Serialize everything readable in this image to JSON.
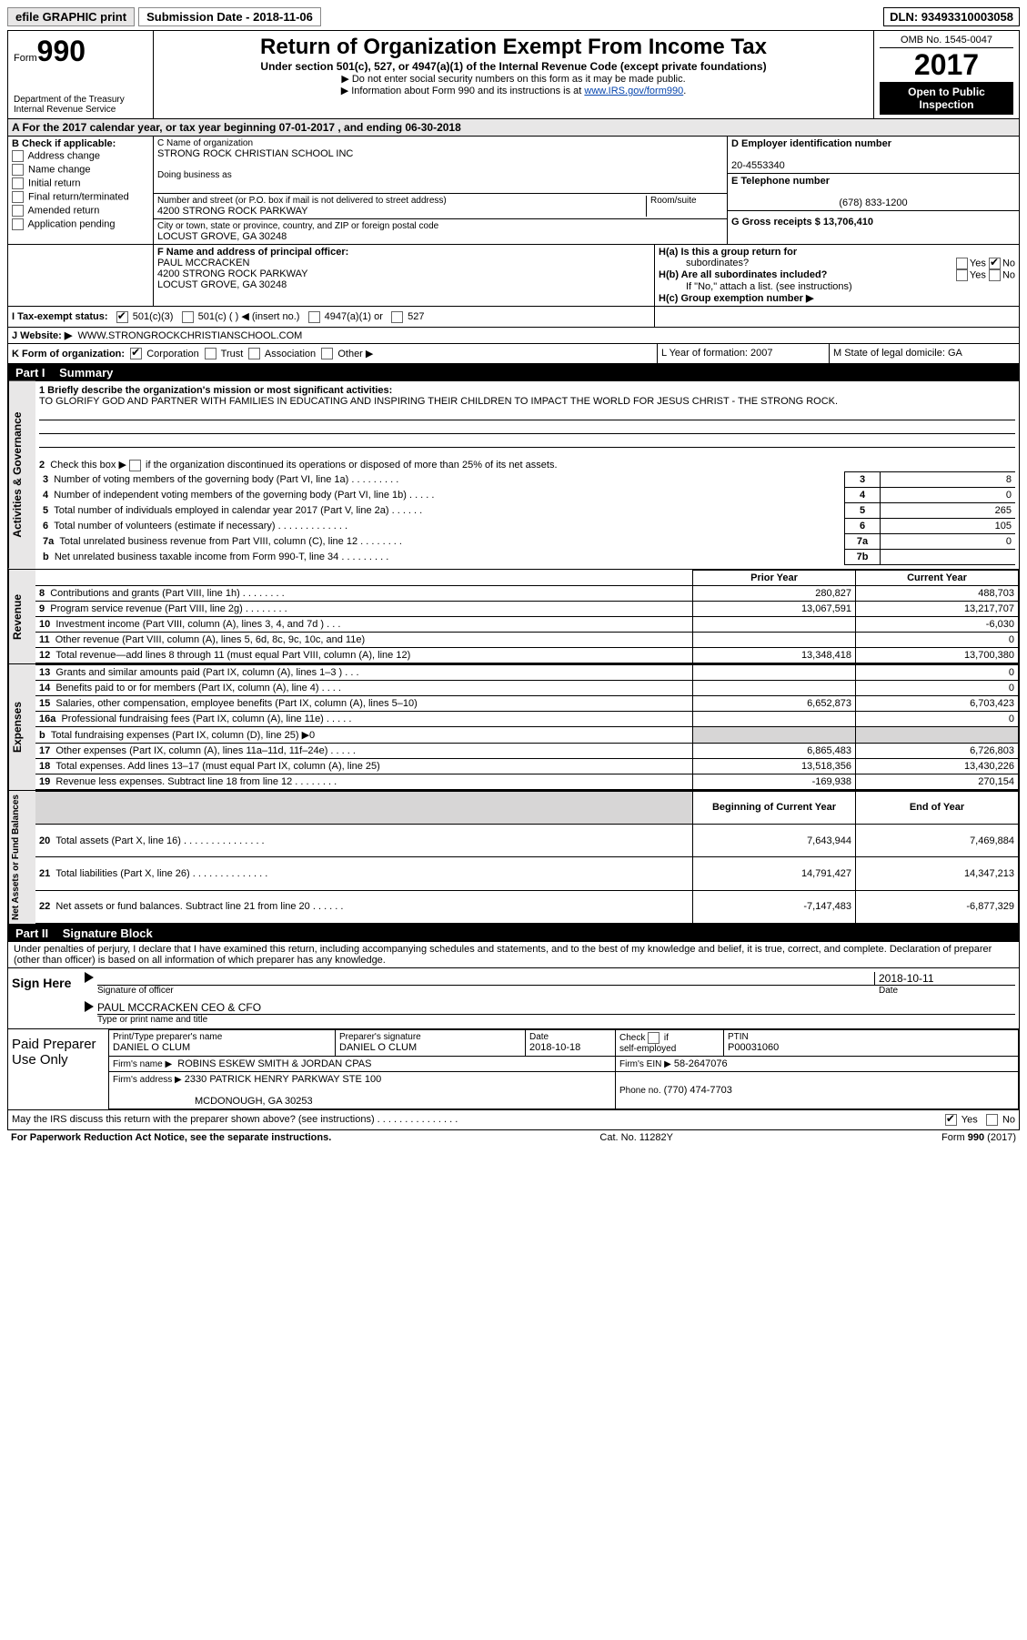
{
  "topbar": {
    "efile": "efile GRAPHIC print",
    "submission": "Submission Date - 2018-11-06",
    "dln": "DLN: 93493310003058"
  },
  "header": {
    "form_label": "Form",
    "form_no": "990",
    "dept1": "Department of the Treasury",
    "dept2": "Internal Revenue Service",
    "title": "Return of Organization Exempt From Income Tax",
    "subtitle": "Under section 501(c), 527, or 4947(a)(1) of the Internal Revenue Code (except private foundations)",
    "note1": "▶ Do not enter social security numbers on this form as it may be made public.",
    "note2_pre": "▶ Information about Form 990 and its instructions is at ",
    "note2_link": "www.IRS.gov/form990",
    "omb": "OMB No. 1545-0047",
    "year": "2017",
    "open1": "Open to Public",
    "open2": "Inspection"
  },
  "lineA": "A   For the 2017 calendar year, or tax year beginning 07-01-2017    , and ending 06-30-2018",
  "sectionB": {
    "b_label": "B Check if applicable:",
    "checks": [
      "Address change",
      "Name change",
      "Initial return",
      "Final return/terminated",
      "Amended return",
      "Application pending"
    ],
    "c_label": "C Name of organization",
    "org_name": "STRONG ROCK CHRISTIAN SCHOOL INC",
    "dba_label": "Doing business as",
    "addr_label": "Number and street (or P.O. box if mail is not delivered to street address)",
    "room_label": "Room/suite",
    "addr": "4200 STRONG ROCK PARKWAY",
    "city_label": "City or town, state or province, country, and ZIP or foreign postal code",
    "city": "LOCUST GROVE, GA  30248",
    "d_label": "D Employer identification number",
    "ein": "20-4553340",
    "e_label": "E Telephone number",
    "phone": "(678) 833-1200",
    "g_label": "G Gross receipts $ 13,706,410"
  },
  "sectionF": {
    "f_label": "F Name and address of principal officer:",
    "name": "PAUL MCCRACKEN",
    "addr": "4200 STRONG ROCK PARKWAY",
    "city": "LOCUST GROVE, GA  30248",
    "ha_label": "H(a)  Is this a group return for",
    "ha_sub": "subordinates?",
    "hb_label": "H(b)  Are all subordinates included?",
    "hb_note": "If \"No,\" attach a list. (see instructions)",
    "hc_label": "H(c)  Group exemption number ▶",
    "yes": "Yes",
    "no": "No"
  },
  "taxStatus": {
    "label": "I   Tax-exempt status:",
    "opt1": "501(c)(3)",
    "opt2": "501(c) (   ) ◀ (insert no.)",
    "opt3": "4947(a)(1) or",
    "opt4": "527"
  },
  "website": {
    "label": "J   Website: ▶",
    "value": "WWW.STRONGROCKCHRISTIANSCHOOL.COM"
  },
  "lineK": {
    "label": "K Form of organization:",
    "opts": [
      "Corporation",
      "Trust",
      "Association",
      "Other ▶"
    ],
    "l": "L Year of formation: 2007",
    "m": "M State of legal domicile: GA"
  },
  "part1": {
    "header": "Part I",
    "title": "Summary",
    "vlabel1": "Activities & Governance",
    "vlabel2": "Revenue",
    "vlabel3": "Expenses",
    "vlabel4": "Net Assets or Fund Balances",
    "line1_label": "1  Briefly describe the organization's mission or most significant activities:",
    "line1_text": "TO GLORIFY GOD AND PARTNER WITH FAMILIES IN EDUCATING AND INSPIRING THEIR CHILDREN TO IMPACT THE WORLD FOR JESUS CHRIST - THE STRONG ROCK.",
    "line2": "2   Check this box ▶       if the organization discontinued its operations or disposed of more than 25% of its net assets.",
    "rows_gov": [
      {
        "n": "3",
        "label": "Number of voting members of the governing body (Part VI, line 1a)   .    .    .    .    .    .    .    .    .",
        "box": "3",
        "val": "8"
      },
      {
        "n": "4",
        "label": "Number of independent voting members of the governing body (Part VI, line 1b)  .    .    .    .    .",
        "box": "4",
        "val": "0"
      },
      {
        "n": "5",
        "label": "Total number of individuals employed in calendar year 2017 (Part V, line 2a)   .    .    .    .    .    .",
        "box": "5",
        "val": "265"
      },
      {
        "n": "6",
        "label": "Total number of volunteers (estimate if necessary)   .    .    .    .    .    .    .    .    .    .    .    .    .",
        "box": "6",
        "val": "105"
      },
      {
        "n": "7a",
        "label": "Total unrelated business revenue from Part VIII, column (C), line 12   .    .    .    .    .    .    .    .",
        "box": "7a",
        "val": "0"
      },
      {
        "n": "b",
        "label": "Net unrelated business taxable income from Form 990-T, line 34   .    .    .    .    .    .    .    .    .",
        "box": "7b",
        "val": ""
      }
    ],
    "col_prior": "Prior Year",
    "col_current": "Current Year",
    "rows_rev": [
      {
        "n": "8",
        "label": "Contributions and grants (Part VIII, line 1h)   .    .    .    .    .    .    .    .",
        "p": "280,827",
        "c": "488,703"
      },
      {
        "n": "9",
        "label": "Program service revenue (Part VIII, line 2g)   .    .    .    .    .    .    .    .",
        "p": "13,067,591",
        "c": "13,217,707"
      },
      {
        "n": "10",
        "label": "Investment income (Part VIII, column (A), lines 3, 4, and 7d )   .    .    .",
        "p": "",
        "c": "-6,030"
      },
      {
        "n": "11",
        "label": "Other revenue (Part VIII, column (A), lines 5, 6d, 8c, 9c, 10c, and 11e)",
        "p": "",
        "c": "0"
      },
      {
        "n": "12",
        "label": "Total revenue—add lines 8 through 11 (must equal Part VIII, column (A), line 12)",
        "p": "13,348,418",
        "c": "13,700,380"
      }
    ],
    "rows_exp": [
      {
        "n": "13",
        "label": "Grants and similar amounts paid (Part IX, column (A), lines 1–3 )   .    .    .",
        "p": "",
        "c": "0"
      },
      {
        "n": "14",
        "label": "Benefits paid to or for members (Part IX, column (A), line 4)   .    .    .    .",
        "p": "",
        "c": "0"
      },
      {
        "n": "15",
        "label": "Salaries, other compensation, employee benefits (Part IX, column (A), lines 5–10)",
        "p": "6,652,873",
        "c": "6,703,423"
      },
      {
        "n": "16a",
        "label": "Professional fundraising fees (Part IX, column (A), line 11e)   .    .    .    .    .",
        "p": "",
        "c": "0"
      },
      {
        "n": "b",
        "label": "Total fundraising expenses (Part IX, column (D), line 25) ▶0",
        "p": "grey",
        "c": "grey"
      },
      {
        "n": "17",
        "label": "Other expenses (Part IX, column (A), lines 11a–11d, 11f–24e)   .    .    .    .    .",
        "p": "6,865,483",
        "c": "6,726,803"
      },
      {
        "n": "18",
        "label": "Total expenses. Add lines 13–17 (must equal Part IX, column (A), line 25)",
        "p": "13,518,356",
        "c": "13,430,226"
      },
      {
        "n": "19",
        "label": "Revenue less expenses. Subtract line 18 from line 12 .    .    .    .    .    .    .    .",
        "p": "-169,938",
        "c": "270,154"
      }
    ],
    "col_begin": "Beginning of Current Year",
    "col_end": "End of Year",
    "rows_net": [
      {
        "n": "20",
        "label": "Total assets (Part X, line 16)  .    .    .    .    .    .    .    .    .    .    .    .    .    .    .",
        "p": "7,643,944",
        "c": "7,469,884"
      },
      {
        "n": "21",
        "label": "Total liabilities (Part X, line 26)   .    .    .    .    .    .    .    .    .    .    .    .    .    .",
        "p": "14,791,427",
        "c": "14,347,213"
      },
      {
        "n": "22",
        "label": "Net assets or fund balances. Subtract line 21 from line 20   .    .    .    .    .    .",
        "p": "-7,147,483",
        "c": "-6,877,329"
      }
    ]
  },
  "part2": {
    "header": "Part II",
    "title": "Signature Block",
    "decl": "Under penalties of perjury, I declare that I have examined this return, including accompanying schedules and statements, and to the best of my knowledge and belief, it is true, correct, and complete. Declaration of preparer (other than officer) is based on all information of which preparer has any knowledge.",
    "sign_here": "Sign Here",
    "sig_officer": "Signature of officer",
    "sig_date": "Date",
    "sig_date_val": "2018-10-11",
    "officer_name": "PAUL MCCRACKEN  CEO & CFO",
    "type_name": "Type or print name and title",
    "paid": "Paid Preparer Use Only",
    "prep_name_label": "Print/Type preparer's name",
    "prep_name": "DANIEL O CLUM",
    "prep_sig_label": "Preparer's signature",
    "prep_sig": "DANIEL O CLUM",
    "prep_date_label": "Date",
    "prep_date": "2018-10-18",
    "check_if": "Check        if self-employed",
    "ptin_label": "PTIN",
    "ptin": "P00031060",
    "firm_name_label": "Firm's name      ▶",
    "firm_name": "ROBINS ESKEW SMITH & JORDAN CPAS",
    "firm_ein_label": "Firm's EIN ▶",
    "firm_ein": "58-2647076",
    "firm_addr_label": "Firm's address ▶",
    "firm_addr1": "2330 PATRICK HENRY PARKWAY STE 100",
    "firm_addr2": "MCDONOUGH, GA  30253",
    "firm_phone_label": "Phone no.",
    "firm_phone": "(770) 474-7703",
    "discuss": "May the IRS discuss this return with the preparer shown above? (see instructions)   .    .    .    .    .    .    .    .    .    .    .    .    .    .    .",
    "yes": "Yes",
    "no": "No"
  },
  "footer": {
    "left": "For Paperwork Reduction Act Notice, see the separate instructions.",
    "mid": "Cat. No. 11282Y",
    "right": "Form 990 (2017)"
  }
}
